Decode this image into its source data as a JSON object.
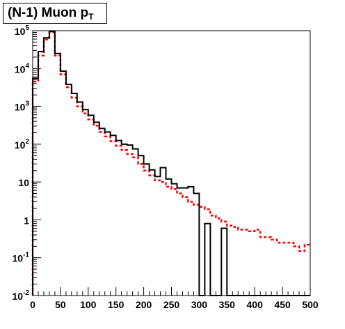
{
  "chart_data": {
    "type": "step-histogram",
    "title": "(N-1) Muon p",
    "title_subscript": "T",
    "xlabel": "",
    "ylabel": "",
    "xlim": [
      0,
      500
    ],
    "ylim": [
      0.01,
      100000
    ],
    "y_scale": "log",
    "grid": false,
    "legend": "none",
    "x_ticks": [
      {
        "value": 0,
        "label": "0"
      },
      {
        "value": 50,
        "label": "50"
      },
      {
        "value": 100,
        "label": "100"
      },
      {
        "value": 150,
        "label": "150"
      },
      {
        "value": 200,
        "label": "200"
      },
      {
        "value": 250,
        "label": "250"
      },
      {
        "value": 300,
        "label": "300"
      },
      {
        "value": 350,
        "label": "350"
      },
      {
        "value": 400,
        "label": "400"
      },
      {
        "value": 450,
        "label": "450"
      },
      {
        "value": 500,
        "label": "500"
      }
    ],
    "y_ticks": [
      {
        "value": 0.01,
        "base": "10",
        "exp": "-2",
        "plain": ""
      },
      {
        "value": 0.1,
        "base": "10",
        "exp": "-1",
        "plain": ""
      },
      {
        "value": 1,
        "base": "",
        "exp": "",
        "plain": "1"
      },
      {
        "value": 10,
        "base": "",
        "exp": "",
        "plain": "10"
      },
      {
        "value": 100,
        "base": "10",
        "exp": "2",
        "plain": ""
      },
      {
        "value": 1000,
        "base": "10",
        "exp": "3",
        "plain": ""
      },
      {
        "value": 10000,
        "base": "10",
        "exp": "4",
        "plain": ""
      },
      {
        "value": 100000,
        "base": "10",
        "exp": "5",
        "plain": ""
      }
    ],
    "bin_width": 10,
    "bin_low_edges": [
      0,
      10,
      20,
      30,
      40,
      50,
      60,
      70,
      80,
      90,
      100,
      110,
      120,
      130,
      140,
      150,
      160,
      170,
      180,
      190,
      200,
      210,
      220,
      230,
      240,
      250,
      260,
      270,
      280,
      290,
      300,
      310,
      320,
      330,
      340,
      350,
      360,
      370,
      380,
      390,
      400,
      410,
      420,
      430,
      440,
      450,
      460,
      470,
      480,
      490
    ],
    "series": [
      {
        "style": "solid",
        "color": "#000000",
        "values": [
          5500,
          28000,
          65000,
          95000,
          25000,
          8500,
          3800,
          2200,
          1300,
          820,
          580,
          380,
          260,
          210,
          170,
          125,
          100,
          95,
          75,
          50,
          30,
          21,
          14,
          24,
          12,
          9,
          7,
          7,
          7.5,
          5,
          0,
          0.8,
          0,
          0,
          0.6,
          0,
          0,
          0,
          0,
          0,
          0,
          0,
          0,
          0,
          0,
          0,
          0,
          0,
          0,
          0
        ],
        "gaps": [
          {
            "from": 320,
            "to": 330
          },
          {
            "from": 360,
            "to": 370
          },
          {
            "from": 400,
            "to": 440
          },
          {
            "from": 450,
            "to": 460
          },
          {
            "from": 470,
            "to": 500
          }
        ]
      },
      {
        "style": "dashed",
        "color": "#ff0000",
        "values": [
          4500,
          22000,
          58000,
          90000,
          22000,
          7000,
          3200,
          1700,
          1000,
          650,
          450,
          310,
          210,
          160,
          120,
          90,
          70,
          55,
          45,
          30,
          20,
          15,
          11,
          10,
          7.5,
          6.5,
          5,
          4,
          3,
          2.5,
          2.2,
          1.9,
          1.3,
          1.1,
          0.9,
          0.7,
          0.65,
          0.55,
          0.55,
          0.5,
          0.55,
          0.35,
          0.35,
          0.3,
          0.25,
          0.25,
          0.25,
          0.2,
          0.15,
          0.22
        ]
      }
    ]
  }
}
